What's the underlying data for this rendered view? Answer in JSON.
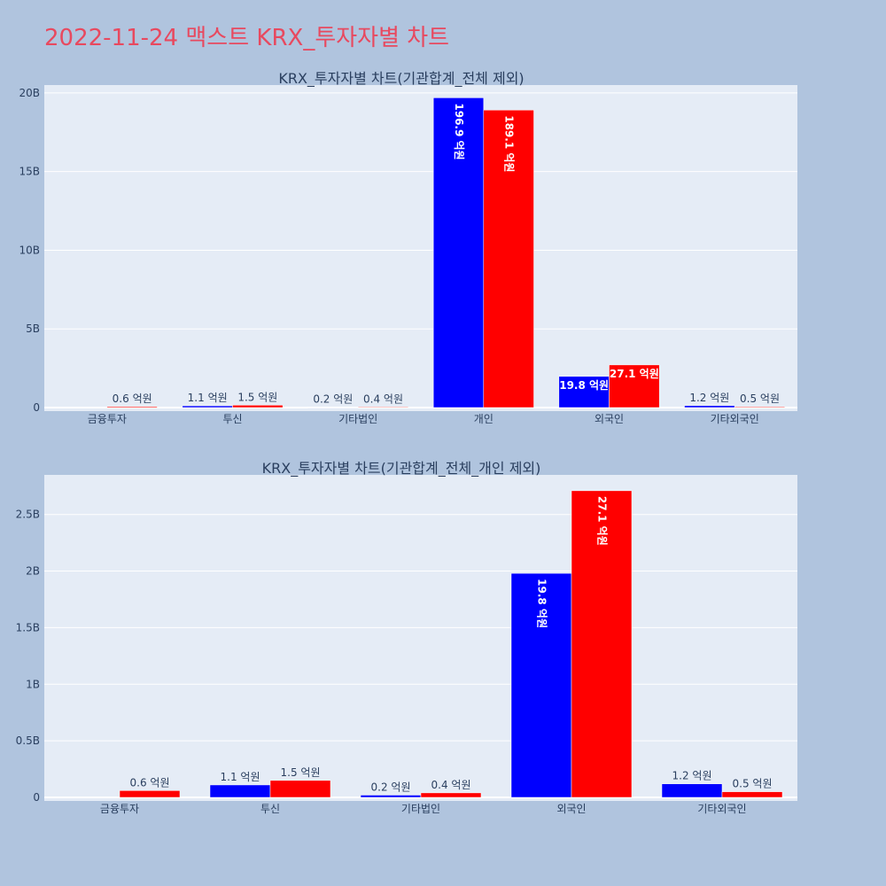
{
  "title": "2022-11-24 맥스트 KRX_투자자별 차트",
  "colors": {
    "page_bg": "#b0c4de",
    "plot_bg": "#e5ecf6",
    "title": "#e8495f",
    "series_blue": "#0000ff",
    "series_red": "#ff0000",
    "text": "#2a3f5f"
  },
  "chart_data": [
    {
      "type": "bar",
      "title": "KRX_투자자별 차트(기관합계_전체 제외)",
      "categories": [
        "금융투자",
        "투신",
        "기타법인",
        "개인",
        "외국인",
        "기타외국인"
      ],
      "series": [
        {
          "color": "#0000ff",
          "values": [
            0,
            110000000,
            20000000,
            19690000000,
            1980000000,
            120000000
          ],
          "labels": [
            "",
            "1.1 억원",
            "0.2 억원",
            "196.9 억원",
            "19.8 억원",
            "1.2 억원"
          ]
        },
        {
          "color": "#ff0000",
          "values": [
            60000000,
            150000000,
            40000000,
            18910000000,
            2710000000,
            50000000
          ],
          "labels": [
            "0.6 억원",
            "1.5 억원",
            "0.4 억원",
            "189.1 억원",
            "27.1 억원",
            "0.5 억원"
          ]
        }
      ],
      "ylim": [
        0,
        20500000000
      ],
      "yticks": [
        0,
        5000000000,
        10000000000,
        15000000000,
        20000000000
      ],
      "ytick_labels": [
        "0",
        "5B",
        "10B",
        "15B",
        "20B"
      ],
      "grid": true
    },
    {
      "type": "bar",
      "title": "KRX_투자자별 차트(기관합계_전체_개인 제외)",
      "categories": [
        "금융투자",
        "투신",
        "기타법인",
        "외국인",
        "기타외국인"
      ],
      "series": [
        {
          "color": "#0000ff",
          "values": [
            0,
            110000000,
            20000000,
            1980000000,
            120000000
          ],
          "labels": [
            "",
            "1.1 억원",
            "0.2 억원",
            "19.8 억원",
            "1.2 억원"
          ]
        },
        {
          "color": "#ff0000",
          "values": [
            60000000,
            150000000,
            40000000,
            2710000000,
            50000000
          ],
          "labels": [
            "0.6 억원",
            "1.5 억원",
            "0.4 억원",
            "27.1 억원",
            "0.5 억원"
          ]
        }
      ],
      "ylim": [
        0,
        2850000000
      ],
      "yticks": [
        0,
        500000000,
        1000000000,
        1500000000,
        2000000000,
        2500000000
      ],
      "ytick_labels": [
        "0",
        "0.5B",
        "1B",
        "1.5B",
        "2B",
        "2.5B"
      ],
      "grid": true
    }
  ]
}
